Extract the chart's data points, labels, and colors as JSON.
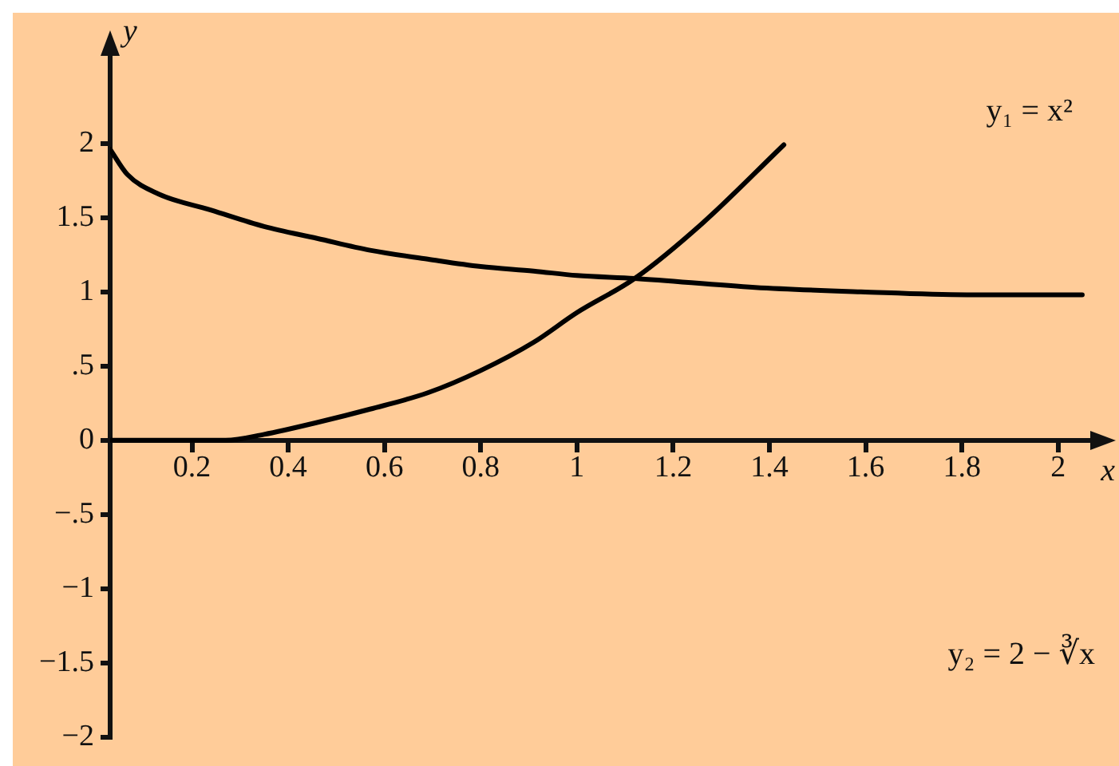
{
  "chart_data": {
    "type": "line",
    "xlabel": "x",
    "ylabel": "y",
    "annotations": [
      "y₁ = x²",
      "y₂ = 2 − ∛x"
    ],
    "series": [
      {
        "color": "#000000",
        "x": [
          0.03,
          0.066,
          0.13,
          0.24,
          0.35,
          0.46,
          0.57,
          0.69,
          0.8,
          0.91,
          1.0,
          1.12,
          1.37,
          1.59,
          1.81,
          2.05
        ],
        "values": [
          1.96,
          1.79,
          1.66,
          1.55,
          1.44,
          1.36,
          1.28,
          1.22,
          1.17,
          1.14,
          1.11,
          1.09,
          1.03,
          1.0,
          0.98,
          0.98
        ]
      },
      {
        "color": "#000000",
        "x": [
          0.03,
          0.15,
          0.27,
          0.35,
          0.46,
          0.57,
          0.69,
          0.8,
          0.91,
          1.0,
          1.12,
          1.26,
          1.43
        ],
        "values": [
          0,
          0,
          0,
          0.04,
          0.12,
          0.21,
          0.32,
          0.47,
          0.66,
          0.86,
          1.09,
          1.46,
          1.99
        ]
      }
    ],
    "xlim": [
      0.03,
      2.07
    ],
    "ylim": [
      -2,
      2.6
    ],
    "xticks": [
      0.2,
      0.4,
      0.6,
      0.8,
      1,
      1.2,
      1.4,
      1.6,
      1.8,
      2
    ],
    "yticks": [
      {
        "value": -2,
        "label": "−2"
      },
      {
        "value": -1.5,
        "label": "−1.5"
      },
      {
        "value": -1,
        "label": "−1"
      },
      {
        "value": -0.5,
        "label": "−.5"
      },
      0,
      {
        "value": 0.5,
        "label": ".5"
      },
      1,
      1.5,
      2
    ],
    "grid": false,
    "legend": false,
    "marker": "none",
    "line_style": "solid"
  }
}
